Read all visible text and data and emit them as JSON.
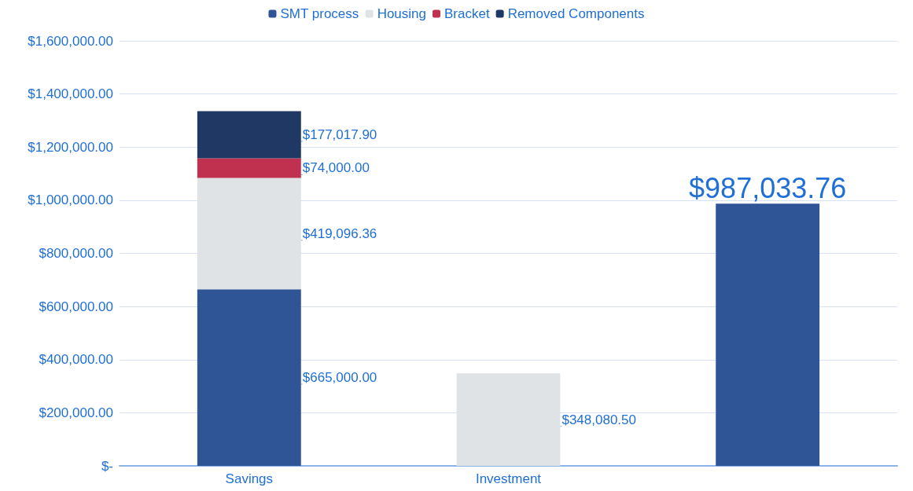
{
  "chart_data": {
    "type": "bar",
    "stacked": true,
    "categories": [
      "Savings",
      "Investment",
      null
    ],
    "series": [
      {
        "name": "SMT process",
        "color": "#2f5597",
        "values": [
          665000,
          null,
          987033.76
        ],
        "value_labels": [
          "$665,000.00",
          null,
          "$987,033.76"
        ]
      },
      {
        "name": "Housing",
        "color": "#dfe3e5",
        "values": [
          419096.36,
          348080.5,
          null
        ],
        "value_labels": [
          "$419,096.36",
          "$348,080.50",
          null
        ]
      },
      {
        "name": "Bracket",
        "color": "#c0304f",
        "values": [
          74000,
          null,
          null
        ],
        "value_labels": [
          "$74,000.00",
          null,
          null
        ]
      },
      {
        "name": "Removed Components",
        "color": "#1f3864",
        "values": [
          177017.9,
          null,
          null
        ],
        "value_labels": [
          "$177,017.90",
          null,
          null
        ]
      }
    ],
    "ylim": [
      0,
      1600000
    ],
    "yticks": [
      {
        "value": 0,
        "label": "$-"
      },
      {
        "value": 200000,
        "label": "$200,000.00"
      },
      {
        "value": 400000,
        "label": "$400,000.00"
      },
      {
        "value": 600000,
        "label": "$600,000.00"
      },
      {
        "value": 800000,
        "label": "$800,000.00"
      },
      {
        "value": 1000000,
        "label": "$1,000,000.00"
      },
      {
        "value": 1200000,
        "label": "$1,200,000.00"
      },
      {
        "value": 1400000,
        "label": "$1,400,000.00"
      },
      {
        "value": 1600000,
        "label": "$1,600,000.00"
      }
    ],
    "grid": "y",
    "legend": "top"
  }
}
